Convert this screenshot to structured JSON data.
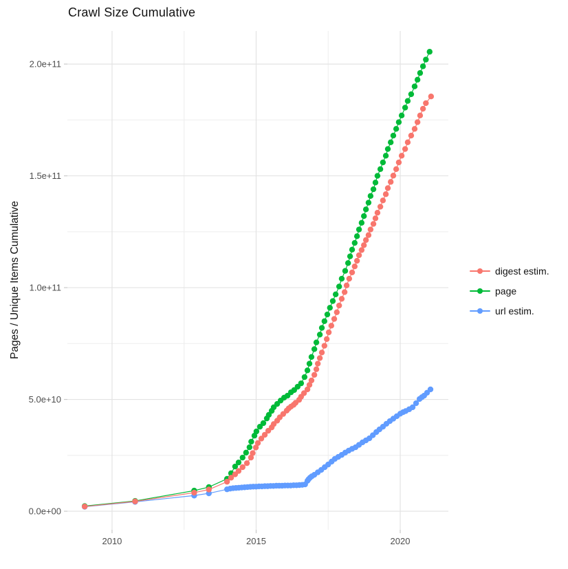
{
  "page": {
    "background": "#ffffff"
  },
  "chart_data": {
    "type": "scatter",
    "title": "Crawl Size Cumulative",
    "xlabel": "",
    "ylabel": "Pages / Unique Items Cumulative",
    "legend_position": "right",
    "grid": "on",
    "grid_major_color": "#e3e3e3",
    "grid_minor_color": "#efefef",
    "tick_mark_color": "#c9c9c9",
    "tick_label_color": "#4d4d4d",
    "value_unit": "1e9",
    "x_axis": {
      "lim": [
        2008.45,
        2021.67
      ],
      "major_ticks": [
        {
          "value": 2010,
          "label": "2010"
        },
        {
          "value": 2015,
          "label": "2015"
        },
        {
          "value": 2020,
          "label": "2020"
        }
      ],
      "minor_ticks": [
        2012.5,
        2017.5
      ]
    },
    "y_axis": {
      "lim": [
        -8.3,
        214.8
      ],
      "major_ticks": [
        {
          "value": 0,
          "label": "0.0e+00"
        },
        {
          "value": 50,
          "label": "5.0e+10"
        },
        {
          "value": 100,
          "label": "1.0e+11"
        },
        {
          "value": 150,
          "label": "1.5e+11"
        },
        {
          "value": 200,
          "label": "2.0e+11"
        }
      ],
      "minor_ticks": [
        25,
        75,
        125,
        175
      ]
    },
    "series": [
      {
        "name": "digest estim.",
        "color": "#F8766D",
        "points": [
          [
            2009.05,
            2.1
          ],
          [
            2010.8,
            4.4
          ],
          [
            2012.85,
            8.3
          ],
          [
            2013.36,
            9.7
          ],
          [
            2013.99,
            13.2
          ],
          [
            2014.13,
            15.0
          ],
          [
            2014.27,
            16.5
          ],
          [
            2014.39,
            18.0
          ],
          [
            2014.53,
            19.7
          ],
          [
            2014.68,
            21.5
          ],
          [
            2014.82,
            24.0
          ],
          [
            2014.88,
            26.0
          ],
          [
            2014.99,
            28.5
          ],
          [
            2015.06,
            30.5
          ],
          [
            2015.18,
            32.5
          ],
          [
            2015.3,
            34.2
          ],
          [
            2015.42,
            36.0
          ],
          [
            2015.54,
            37.5
          ],
          [
            2015.61,
            39.0
          ],
          [
            2015.73,
            40.5
          ],
          [
            2015.82,
            42.0
          ],
          [
            2015.94,
            43.5
          ],
          [
            2016.06,
            45.0
          ],
          [
            2016.13,
            46.0
          ],
          [
            2016.21,
            46.8
          ],
          [
            2016.3,
            47.6
          ],
          [
            2016.37,
            48.5
          ],
          [
            2016.49,
            49.8
          ],
          [
            2016.56,
            51.2
          ],
          [
            2016.66,
            52.8
          ],
          [
            2016.78,
            54.5
          ],
          [
            2016.85,
            56.5
          ],
          [
            2016.92,
            58.5
          ],
          [
            2017.02,
            61.0
          ],
          [
            2017.09,
            63.5
          ],
          [
            2017.14,
            66.0
          ],
          [
            2017.21,
            68.5
          ],
          [
            2017.28,
            71.0
          ],
          [
            2017.37,
            74.0
          ],
          [
            2017.45,
            77.0
          ],
          [
            2017.52,
            80.0
          ],
          [
            2017.61,
            83.0
          ],
          [
            2017.71,
            86.0
          ],
          [
            2017.8,
            89.0
          ],
          [
            2017.88,
            92.0
          ],
          [
            2017.97,
            95.0
          ],
          [
            2018.07,
            98.0
          ],
          [
            2018.14,
            101.0
          ],
          [
            2018.23,
            104.0
          ],
          [
            2018.33,
            106.8
          ],
          [
            2018.42,
            109.5
          ],
          [
            2018.5,
            112.0
          ],
          [
            2018.57,
            114.5
          ],
          [
            2018.66,
            116.8
          ],
          [
            2018.74,
            119.0
          ],
          [
            2018.81,
            121.3
          ],
          [
            2018.9,
            123.5
          ],
          [
            2018.97,
            126.0
          ],
          [
            2019.07,
            128.5
          ],
          [
            2019.14,
            131.0
          ],
          [
            2019.21,
            133.5
          ],
          [
            2019.31,
            136.2
          ],
          [
            2019.4,
            139.0
          ],
          [
            2019.5,
            141.8
          ],
          [
            2019.57,
            144.5
          ],
          [
            2019.67,
            147.3
          ],
          [
            2019.76,
            150.1
          ],
          [
            2019.86,
            153.0
          ],
          [
            2019.95,
            156.0
          ],
          [
            2020.05,
            159.0
          ],
          [
            2020.17,
            162.0
          ],
          [
            2020.26,
            165.0
          ],
          [
            2020.38,
            168.0
          ],
          [
            2020.5,
            171.0
          ],
          [
            2020.6,
            174.0
          ],
          [
            2020.69,
            177.0
          ],
          [
            2020.79,
            180.0
          ],
          [
            2020.89,
            182.5
          ],
          [
            2021.07,
            185.5
          ]
        ]
      },
      {
        "name": "page",
        "color": "#00BA38",
        "points": [
          [
            2009.05,
            2.3
          ],
          [
            2010.8,
            4.6
          ],
          [
            2012.85,
            9.2
          ],
          [
            2013.36,
            10.8
          ],
          [
            2013.99,
            14.5
          ],
          [
            2014.13,
            17.0
          ],
          [
            2014.27,
            20.0
          ],
          [
            2014.39,
            21.8
          ],
          [
            2014.53,
            24.0
          ],
          [
            2014.65,
            26.2
          ],
          [
            2014.77,
            28.6
          ],
          [
            2014.83,
            31.1
          ],
          [
            2014.94,
            33.8
          ],
          [
            2015.01,
            35.7
          ],
          [
            2015.13,
            37.8
          ],
          [
            2015.25,
            39.4
          ],
          [
            2015.37,
            41.5
          ],
          [
            2015.44,
            43.1
          ],
          [
            2015.54,
            44.9
          ],
          [
            2015.61,
            46.5
          ],
          [
            2015.73,
            48.0
          ],
          [
            2015.85,
            49.5
          ],
          [
            2015.97,
            50.8
          ],
          [
            2016.09,
            51.7
          ],
          [
            2016.21,
            53.2
          ],
          [
            2016.32,
            54.2
          ],
          [
            2016.44,
            55.7
          ],
          [
            2016.56,
            57.2
          ],
          [
            2016.68,
            60.0
          ],
          [
            2016.78,
            63.0
          ],
          [
            2016.85,
            66.0
          ],
          [
            2016.92,
            69.0
          ],
          [
            2017.02,
            72.5
          ],
          [
            2017.09,
            75.5
          ],
          [
            2017.21,
            79.0
          ],
          [
            2017.28,
            82.0
          ],
          [
            2017.37,
            85.0
          ],
          [
            2017.47,
            88.0
          ],
          [
            2017.56,
            91.0
          ],
          [
            2017.66,
            94.0
          ],
          [
            2017.76,
            97.0
          ],
          [
            2017.88,
            100.5
          ],
          [
            2017.97,
            104.0
          ],
          [
            2018.09,
            107.5
          ],
          [
            2018.19,
            111.0
          ],
          [
            2018.26,
            114.0
          ],
          [
            2018.33,
            117.0
          ],
          [
            2018.42,
            120.0
          ],
          [
            2018.5,
            123.0
          ],
          [
            2018.57,
            126.0
          ],
          [
            2018.66,
            129.0
          ],
          [
            2018.74,
            132.0
          ],
          [
            2018.81,
            135.0
          ],
          [
            2018.9,
            138.0
          ],
          [
            2018.97,
            141.0
          ],
          [
            2019.07,
            144.0
          ],
          [
            2019.14,
            147.0
          ],
          [
            2019.21,
            150.0
          ],
          [
            2019.31,
            153.0
          ],
          [
            2019.4,
            156.0
          ],
          [
            2019.5,
            159.0
          ],
          [
            2019.57,
            162.0
          ],
          [
            2019.67,
            165.0
          ],
          [
            2019.76,
            168.0
          ],
          [
            2019.86,
            171.0
          ],
          [
            2019.95,
            174.0
          ],
          [
            2020.05,
            177.0
          ],
          [
            2020.17,
            180.5
          ],
          [
            2020.26,
            183.5
          ],
          [
            2020.38,
            186.5
          ],
          [
            2020.5,
            190.0
          ],
          [
            2020.6,
            193.0
          ],
          [
            2020.69,
            196.0
          ],
          [
            2020.79,
            199.0
          ],
          [
            2020.89,
            202.0
          ],
          [
            2021.02,
            205.5
          ]
        ]
      },
      {
        "name": "url estim.",
        "color": "#619CFF",
        "points": [
          [
            2009.05,
            2.0
          ],
          [
            2010.8,
            4.2
          ],
          [
            2012.85,
            7.0
          ],
          [
            2013.36,
            8.0
          ],
          [
            2013.99,
            9.8
          ],
          [
            2014.1,
            10.1
          ],
          [
            2014.2,
            10.3
          ],
          [
            2014.3,
            10.4
          ],
          [
            2014.4,
            10.5
          ],
          [
            2014.5,
            10.6
          ],
          [
            2014.6,
            10.7
          ],
          [
            2014.7,
            10.8
          ],
          [
            2014.8,
            10.9
          ],
          [
            2014.9,
            11.0
          ],
          [
            2015.0,
            11.0
          ],
          [
            2015.1,
            11.1
          ],
          [
            2015.2,
            11.1
          ],
          [
            2015.3,
            11.2
          ],
          [
            2015.4,
            11.2
          ],
          [
            2015.5,
            11.3
          ],
          [
            2015.6,
            11.3
          ],
          [
            2015.7,
            11.4
          ],
          [
            2015.8,
            11.4
          ],
          [
            2015.9,
            11.4
          ],
          [
            2016.0,
            11.5
          ],
          [
            2016.1,
            11.5
          ],
          [
            2016.2,
            11.5
          ],
          [
            2016.3,
            11.6
          ],
          [
            2016.4,
            11.6
          ],
          [
            2016.5,
            11.7
          ],
          [
            2016.6,
            11.8
          ],
          [
            2016.7,
            12.0
          ],
          [
            2016.78,
            13.6
          ],
          [
            2016.82,
            14.3
          ],
          [
            2016.87,
            15.0
          ],
          [
            2016.93,
            15.6
          ],
          [
            2017.02,
            16.3
          ],
          [
            2017.14,
            17.4
          ],
          [
            2017.26,
            18.5
          ],
          [
            2017.38,
            19.7
          ],
          [
            2017.5,
            20.9
          ],
          [
            2017.62,
            22.2
          ],
          [
            2017.73,
            23.4
          ],
          [
            2017.85,
            24.3
          ],
          [
            2017.97,
            25.2
          ],
          [
            2018.09,
            26.2
          ],
          [
            2018.21,
            27.1
          ],
          [
            2018.33,
            27.9
          ],
          [
            2018.45,
            28.6
          ],
          [
            2018.57,
            29.7
          ],
          [
            2018.69,
            30.8
          ],
          [
            2018.81,
            31.7
          ],
          [
            2018.93,
            32.6
          ],
          [
            2019.05,
            34.0
          ],
          [
            2019.17,
            35.4
          ],
          [
            2019.28,
            36.6
          ],
          [
            2019.4,
            37.8
          ],
          [
            2019.52,
            39.1
          ],
          [
            2019.64,
            40.3
          ],
          [
            2019.76,
            41.4
          ],
          [
            2019.88,
            42.5
          ],
          [
            2020.0,
            43.6
          ],
          [
            2020.1,
            44.3
          ],
          [
            2020.19,
            44.8
          ],
          [
            2020.31,
            45.6
          ],
          [
            2020.43,
            46.5
          ],
          [
            2020.55,
            48.3
          ],
          [
            2020.67,
            50.2
          ],
          [
            2020.75,
            51.0
          ],
          [
            2020.83,
            51.7
          ],
          [
            2020.93,
            53.0
          ],
          [
            2021.05,
            54.5
          ]
        ]
      }
    ],
    "draw_order": [
      1,
      2,
      0
    ]
  }
}
